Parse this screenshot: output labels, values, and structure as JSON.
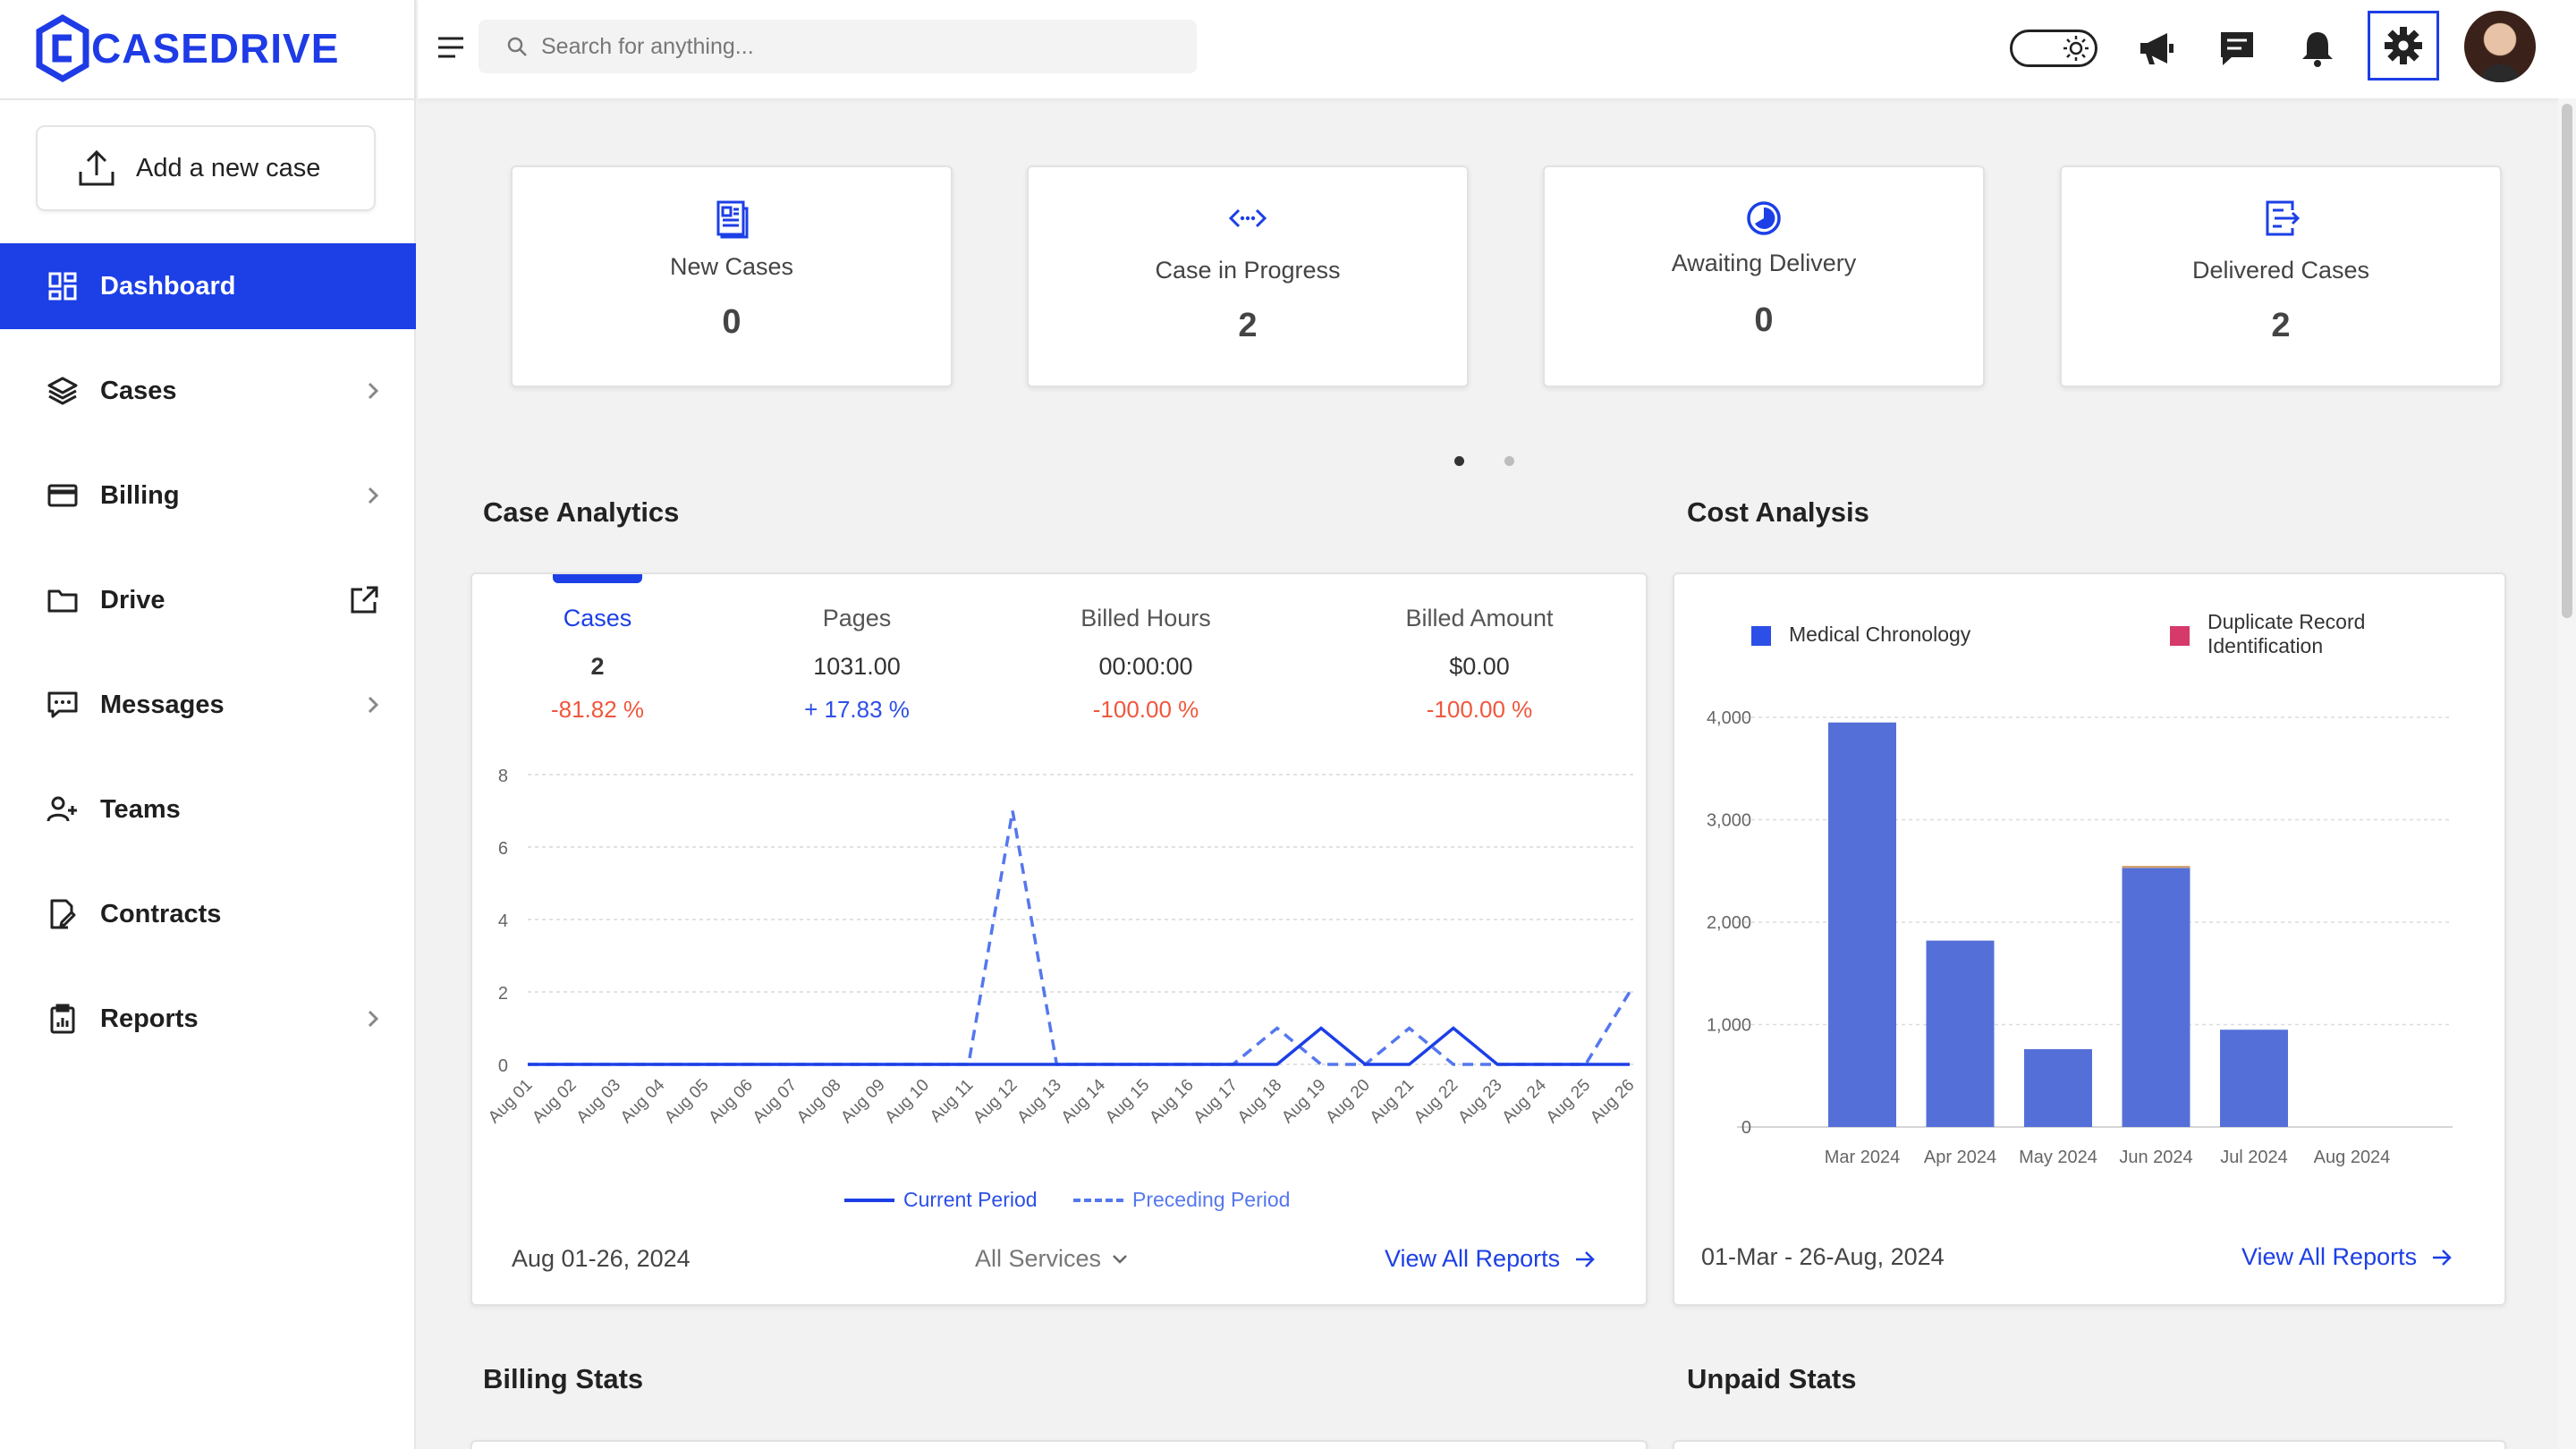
{
  "brand": {
    "name": "CASEDRIVE",
    "color": "#1e3be6"
  },
  "sidebar": {
    "add_case_label": "Add a new case",
    "items": [
      {
        "label": "Dashboard",
        "icon": "dashboard-icon",
        "active": true
      },
      {
        "label": "Cases",
        "icon": "layers-icon",
        "chevron": true
      },
      {
        "label": "Billing",
        "icon": "card-icon",
        "chevron": true
      },
      {
        "label": "Drive",
        "icon": "folder-icon",
        "external": true
      },
      {
        "label": "Messages",
        "icon": "message-icon",
        "chevron": true
      },
      {
        "label": "Teams",
        "icon": "users-icon"
      },
      {
        "label": "Contracts",
        "icon": "contract-icon"
      },
      {
        "label": "Reports",
        "icon": "clipboard-icon",
        "chevron": true
      }
    ]
  },
  "topbar": {
    "search_placeholder": "Search for anything...",
    "icons": [
      "theme-toggle",
      "megaphone-icon",
      "chat-icon",
      "bell-icon",
      "gear-icon",
      "avatar"
    ]
  },
  "stats": [
    {
      "label": "New Cases",
      "value": "0",
      "icon": "document-icon"
    },
    {
      "label": "Case in Progress",
      "value": "2",
      "icon": "code-icon"
    },
    {
      "label": "Awaiting Delivery",
      "value": "0",
      "icon": "clock-icon"
    },
    {
      "label": "Delivered Cases",
      "value": "2",
      "icon": "delivered-icon"
    }
  ],
  "carousel": {
    "pages": 2,
    "active": 0
  },
  "case_analytics": {
    "title": "Case Analytics",
    "metrics": [
      {
        "label": "Cases",
        "value": "2",
        "change": "-81.82 %",
        "trend": "down",
        "active": true
      },
      {
        "label": "Pages",
        "value": "1031.00",
        "change": "+ 17.83 %",
        "trend": "up"
      },
      {
        "label": "Billed Hours",
        "value": "00:00:00",
        "change": "-100.00 %",
        "trend": "down"
      },
      {
        "label": "Billed Amount",
        "value": "$0.00",
        "change": "-100.00 %",
        "trend": "down"
      }
    ],
    "date_range": "Aug 01-26, 2024",
    "services_label": "All Services",
    "view_all": "View All Reports"
  },
  "cost_analysis": {
    "title": "Cost Analysis",
    "date_range": "01-Mar - 26-Aug, 2024",
    "view_all": "View All Reports"
  },
  "billing_stats": {
    "title": "Billing Stats"
  },
  "unpaid_stats": {
    "title": "Unpaid Stats"
  },
  "colors": {
    "accent": "#1c3fe6",
    "negative": "#f0573d",
    "positive": "#2c4fe8",
    "bar": "#5470d8",
    "duplicate": "#d63a6a"
  },
  "chart_data": [
    {
      "type": "line",
      "categories": [
        "Aug 01",
        "Aug 02",
        "Aug 03",
        "Aug 04",
        "Aug 05",
        "Aug 06",
        "Aug 07",
        "Aug 08",
        "Aug 09",
        "Aug 10",
        "Aug 11",
        "Aug 12",
        "Aug 13",
        "Aug 14",
        "Aug 15",
        "Aug 16",
        "Aug 17",
        "Aug 18",
        "Aug 19",
        "Aug 20",
        "Aug 21",
        "Aug 22",
        "Aug 23",
        "Aug 24",
        "Aug 25",
        "Aug 26"
      ],
      "series": [
        {
          "name": "Current Period",
          "style": "solid",
          "values": [
            0,
            0,
            0,
            0,
            0,
            0,
            0,
            0,
            0,
            0,
            0,
            0,
            0,
            0,
            0,
            0,
            0,
            0,
            1,
            0,
            0,
            1,
            0,
            0,
            0,
            0
          ]
        },
        {
          "name": "Preceding Period",
          "style": "dashed",
          "values": [
            0,
            0,
            0,
            0,
            0,
            0,
            0,
            0,
            0,
            0,
            0,
            7,
            0,
            0,
            0,
            0,
            0,
            1,
            0,
            0,
            1,
            0,
            0,
            0,
            0,
            2
          ]
        }
      ],
      "ylim": [
        0,
        8
      ],
      "yticks": [
        0,
        2,
        4,
        6,
        8
      ],
      "grid": true,
      "legend_position": "bottom"
    },
    {
      "type": "bar",
      "categories": [
        "Mar 2024",
        "Apr 2024",
        "May 2024",
        "Jun 2024",
        "Jul 2024",
        "Aug 2024"
      ],
      "series": [
        {
          "name": "Medical Chronology",
          "values": [
            3950,
            1820,
            760,
            2530,
            950,
            0
          ]
        },
        {
          "name": "Duplicate Record Identification",
          "values": [
            0,
            0,
            0,
            20,
            0,
            0
          ]
        }
      ],
      "stacked": true,
      "ylim": [
        0,
        4000
      ],
      "yticks": [
        "0",
        "1,000",
        "2,000",
        "3,000",
        "4,000"
      ],
      "grid": true,
      "legend_position": "top"
    }
  ]
}
